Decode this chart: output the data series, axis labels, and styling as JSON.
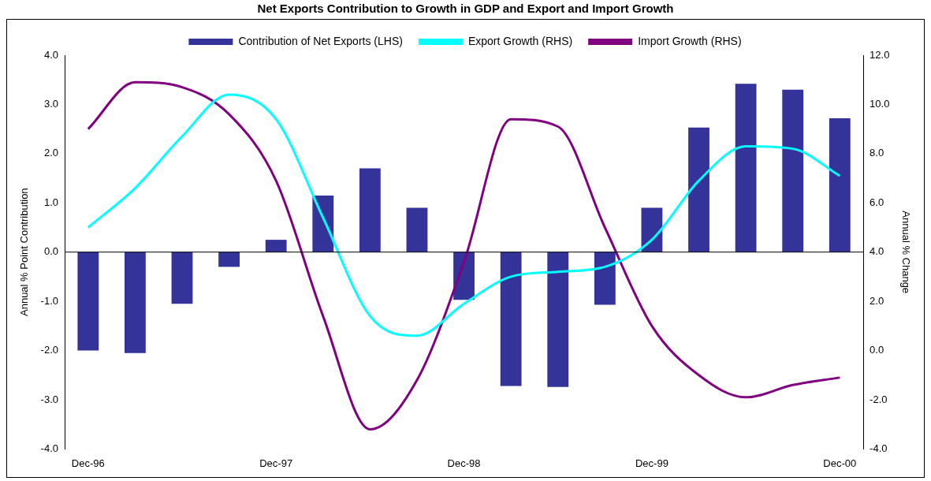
{
  "chart_data": {
    "type": "bar",
    "title": "Net Exports Contribution to Growth in GDP and Export and Import Growth",
    "categories": [
      "Dec-96",
      null,
      null,
      null,
      "Dec-97",
      null,
      null,
      null,
      "Dec-98",
      null,
      null,
      null,
      "Dec-99",
      null,
      null,
      null,
      "Dec-00"
    ],
    "series": [
      {
        "name": "Contribution of Net Exports (LHS)",
        "color": "#333399",
        "values": [
          -2.0,
          -2.05,
          -1.05,
          -0.3,
          0.25,
          1.15,
          1.7,
          0.9,
          -0.97,
          -2.72,
          -2.74,
          -1.07,
          0.9,
          2.53,
          3.42,
          3.3,
          2.72
        ]
      },
      {
        "name": "Export Growth (RHS)",
        "type": "line",
        "axis": "y2",
        "color": "#00ffff",
        "values": [
          5.0,
          6.6,
          8.7,
          10.4,
          9.4,
          5.4,
          1.4,
          0.6,
          1.9,
          3.0,
          3.2,
          3.4,
          4.5,
          6.9,
          8.3,
          8.2,
          7.1
        ]
      },
      {
        "name": "Import Growth (RHS)",
        "type": "line",
        "axis": "y2",
        "color": "#800080",
        "values": [
          9.0,
          10.9,
          10.7,
          9.6,
          6.9,
          1.4,
          -3.2,
          -1.2,
          3.6,
          9.4,
          9.1,
          5.0,
          1.0,
          -1.0,
          -1.9,
          -1.4,
          -1.1
        ]
      }
    ],
    "ylabel": "Annual % Point Contribution",
    "y2label": "Annual % Change",
    "ylim": [
      -4,
      4
    ],
    "yticks": [
      {
        "value": -4,
        "label": "-4.0"
      },
      {
        "value": -3,
        "label": "-3.0"
      },
      {
        "value": -2,
        "label": "-2.0"
      },
      {
        "value": -1,
        "label": "-1.0"
      },
      {
        "value": 0,
        "label": "0.0"
      },
      {
        "value": 1,
        "label": "1.0"
      },
      {
        "value": 2,
        "label": "2.0"
      },
      {
        "value": 3,
        "label": "3.0"
      },
      {
        "value": 4,
        "label": "4.0"
      }
    ],
    "y2lim": [
      -4,
      12
    ],
    "y2ticks": [
      {
        "value": -4,
        "label": "-4.0"
      },
      {
        "value": -2,
        "label": "-2.0"
      },
      {
        "value": 0,
        "label": "0.0"
      },
      {
        "value": 2,
        "label": "2.0"
      },
      {
        "value": 4,
        "label": "4.0"
      },
      {
        "value": 6,
        "label": "6.0"
      },
      {
        "value": 8,
        "label": "8.0"
      },
      {
        "value": 10,
        "label": "10.0"
      },
      {
        "value": 12,
        "label": "12.0"
      }
    ],
    "ref_lines": [
      {
        "axis": "y",
        "value": 0,
        "color": "#000000",
        "line_style": "solid"
      }
    ],
    "legend": "top",
    "grid": false,
    "marker": "none",
    "line_style": "solid"
  }
}
